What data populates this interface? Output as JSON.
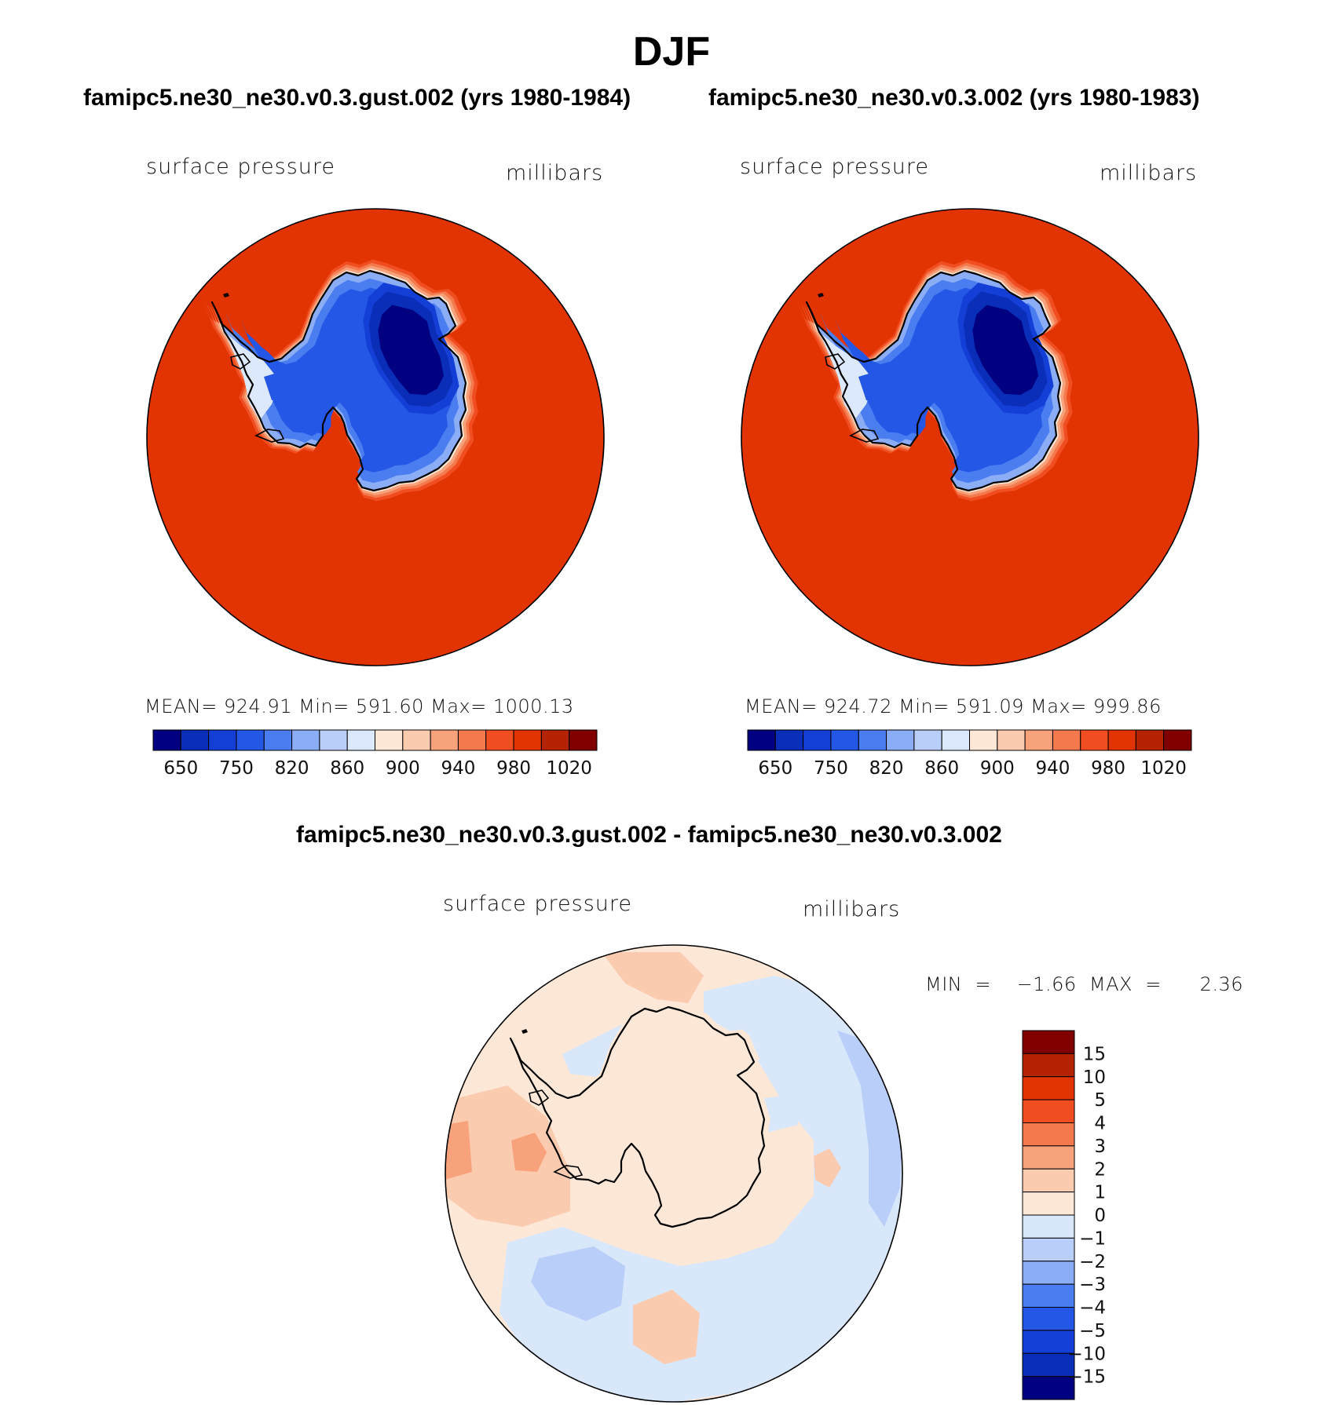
{
  "title": "DJF",
  "colors": {
    "abs_scale": [
      "#000080",
      "#0a2eb8",
      "#143fd6",
      "#2457e6",
      "#4a7df0",
      "#8aadf6",
      "#b9cef9",
      "#dce8fc",
      "#fde8d8",
      "#fbcbb0",
      "#f8a27c",
      "#f47a4e",
      "#f04d21",
      "#e23402",
      "#b52305",
      "#800000"
    ],
    "diff_scale": [
      "#000080",
      "#0a2eb8",
      "#143fd6",
      "#2457e6",
      "#4a7df0",
      "#8aadf6",
      "#b9cef9",
      "#d9e7fb",
      "#fde8d8",
      "#fbcbb0",
      "#f8a27c",
      "#f47a4e",
      "#f04d21",
      "#e23402",
      "#b52305",
      "#800000"
    ],
    "ocean": "#e23402",
    "diff_bg": "#fde8d8"
  },
  "panels": [
    {
      "title": "famipc5.ne30_ne30.v0.3.gust.002 (yrs 1980-1984)",
      "left_label": "surface pressure",
      "right_label": "millibars",
      "stats": "MEAN=  924.91    Min=  591.60    Max=  1000.13"
    },
    {
      "title": "famipc5.ne30_ne30.v0.3.002 (yrs 1980-1983)",
      "left_label": "surface pressure",
      "right_label": "millibars",
      "stats": "MEAN=  924.72    Min=  591.09    Max=  999.86"
    }
  ],
  "diff_panel": {
    "title": "famipc5.ne30_ne30.v0.3.gust.002 - famipc5.ne30_ne30.v0.3.002",
    "left_label": "surface pressure",
    "right_label": "millibars",
    "minmax": "MIN  =    −1.66  MAX  =      2.36"
  },
  "chart_data": [
    {
      "type": "heatmap",
      "projection": "south polar stereographic",
      "title": "famipc5.ne30_ne30.v0.3.gust.002 (yrs 1980-1984)",
      "variable": "surface pressure",
      "units": "millibars",
      "mean": 924.91,
      "min": 591.6,
      "max": 1000.13,
      "colorbar_ticks": [
        "650",
        "750",
        "820",
        "860",
        "900",
        "940",
        "980",
        "1020"
      ]
    },
    {
      "type": "heatmap",
      "projection": "south polar stereographic",
      "title": "famipc5.ne30_ne30.v0.3.002 (yrs 1980-1983)",
      "variable": "surface pressure",
      "units": "millibars",
      "mean": 924.72,
      "min": 591.09,
      "max": 999.86,
      "colorbar_ticks": [
        "650",
        "750",
        "820",
        "860",
        "900",
        "940",
        "980",
        "1020"
      ]
    },
    {
      "type": "heatmap",
      "projection": "south polar stereographic",
      "title": "famipc5.ne30_ne30.v0.3.gust.002 - famipc5.ne30_ne30.v0.3.002",
      "variable": "surface pressure",
      "units": "millibars",
      "min": -1.66,
      "max": 2.36,
      "colorbar_ticks": [
        "15",
        "10",
        "5",
        "4",
        "3",
        "2",
        "1",
        "0",
        "−1",
        "−2",
        "−3",
        "−4",
        "−5",
        "−10",
        "−15"
      ]
    }
  ]
}
